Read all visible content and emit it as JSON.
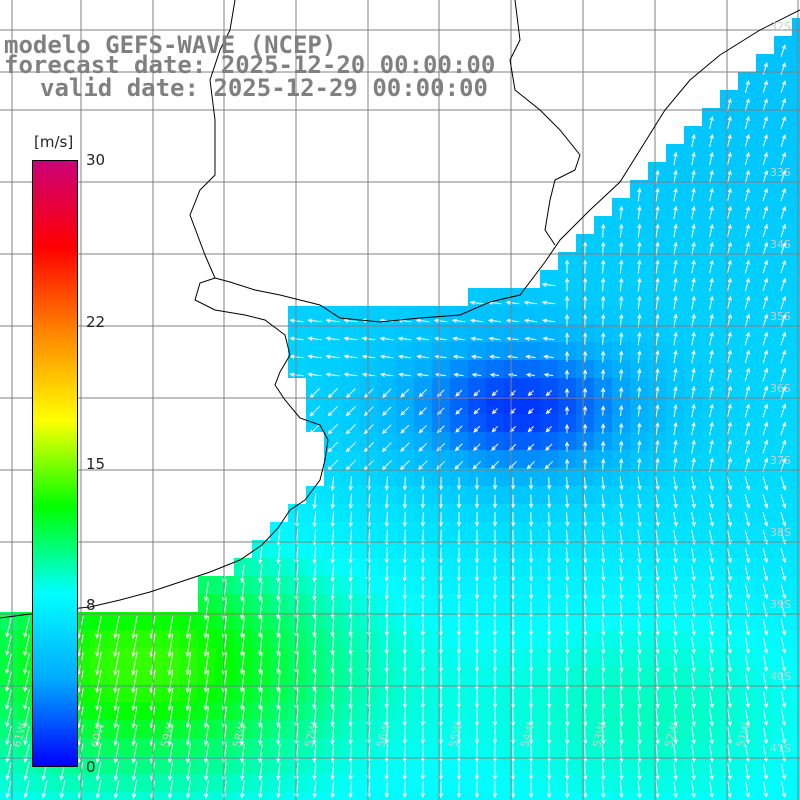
{
  "header": {
    "line1": "modelo GEFS-WAVE (NCEP)",
    "line2": "forecast date: 2025-12-20 00:00:00",
    "line3": "valid date: 2025-12-29 00:00:00"
  },
  "colorbar": {
    "units": "[m/s]",
    "ticks": [
      "30",
      "22",
      "15",
      "8",
      "0"
    ],
    "tick_values": [
      30,
      22,
      15,
      8,
      0
    ],
    "min": 0,
    "max": 30,
    "colors": [
      "#0000ff",
      "#00aaff",
      "#00ffff",
      "#00ff00",
      "#ffff00",
      "#ff8800",
      "#ff0000",
      "#cc0077"
    ]
  },
  "map": {
    "land_color": "#ffffff",
    "coast_color": "#000000",
    "grid_color": "#808080",
    "lat_labels": [
      "32S",
      "33S",
      "34S",
      "35S",
      "36S",
      "37S",
      "38S",
      "39S",
      "40S",
      "41S"
    ],
    "lon_labels": [
      "61W",
      "60W",
      "59W",
      "58W",
      "57W",
      "56W",
      "55W",
      "54W",
      "53W",
      "52W",
      "51W"
    ]
  }
}
